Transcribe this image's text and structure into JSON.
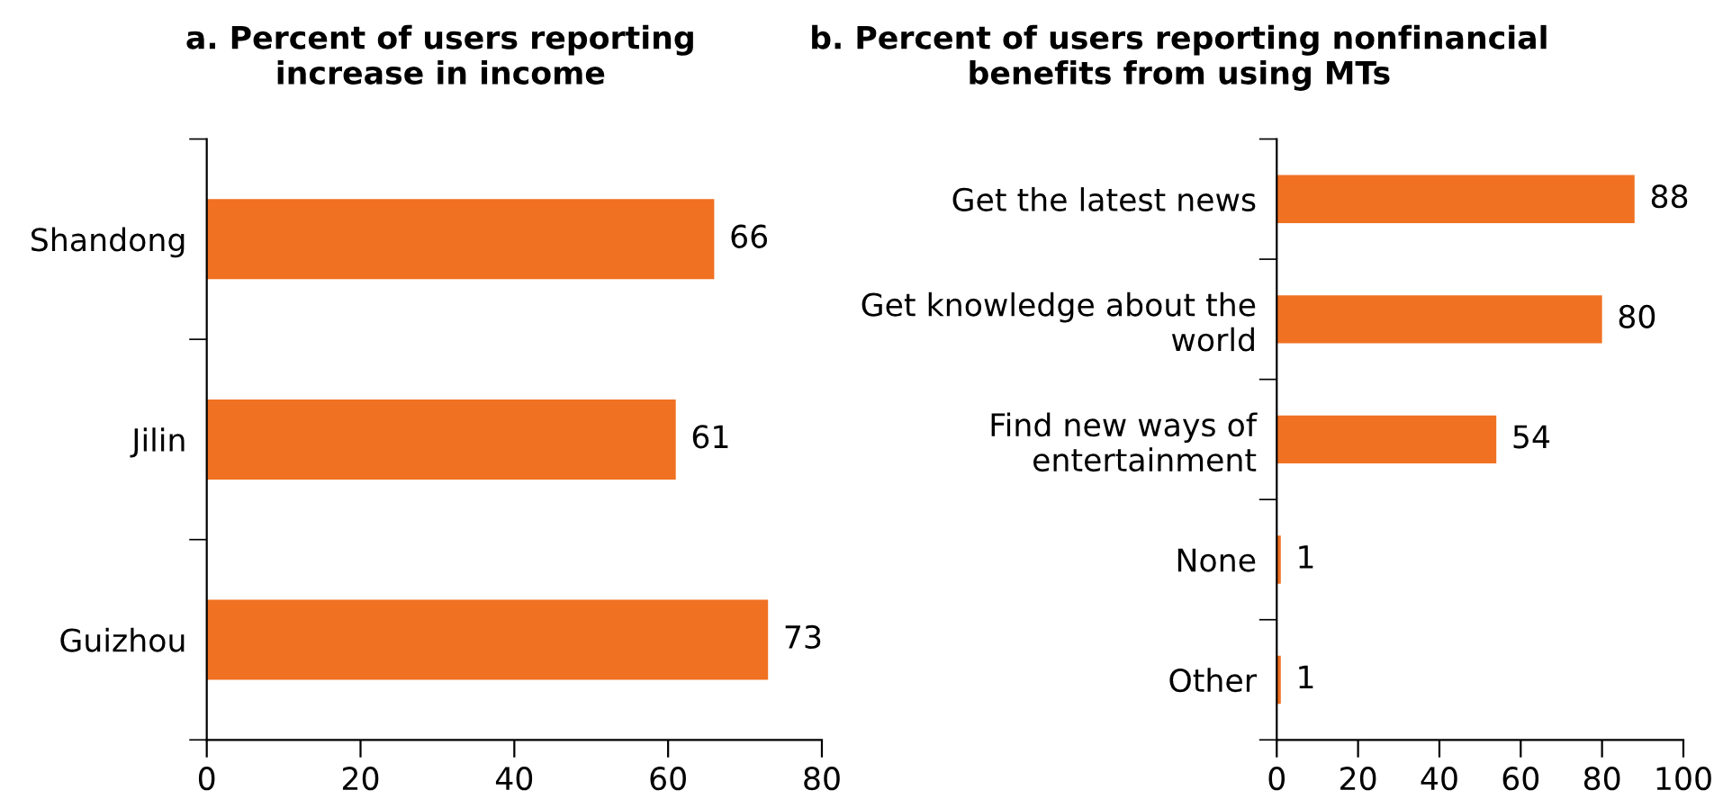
{
  "chart_data": [
    {
      "type": "bar",
      "orientation": "horizontal",
      "title": "a. Percent of users reporting\nincrease in income",
      "categories": [
        "Shandong",
        "Jilin",
        "Guizhou"
      ],
      "values": [
        66,
        61,
        73
      ],
      "color": "#f07122",
      "xlim": [
        0,
        80
      ],
      "xticks": [
        0,
        20,
        40,
        60,
        80
      ],
      "data_labels": true,
      "grid": false,
      "legend": false
    },
    {
      "type": "bar",
      "orientation": "horizontal",
      "title": "b. Percent of users reporting nonfinancial\nbenefits from using MTs",
      "categories": [
        "Get the latest news",
        "Get knowledge about the\nworld",
        "Find new ways of\nentertainment",
        "None",
        "Other"
      ],
      "values": [
        88,
        80,
        54,
        1,
        1
      ],
      "color": "#f07122",
      "xlim": [
        0,
        100
      ],
      "xticks": [
        0,
        20,
        40,
        60,
        80,
        100
      ],
      "data_labels": true,
      "grid": false,
      "legend": false
    }
  ]
}
